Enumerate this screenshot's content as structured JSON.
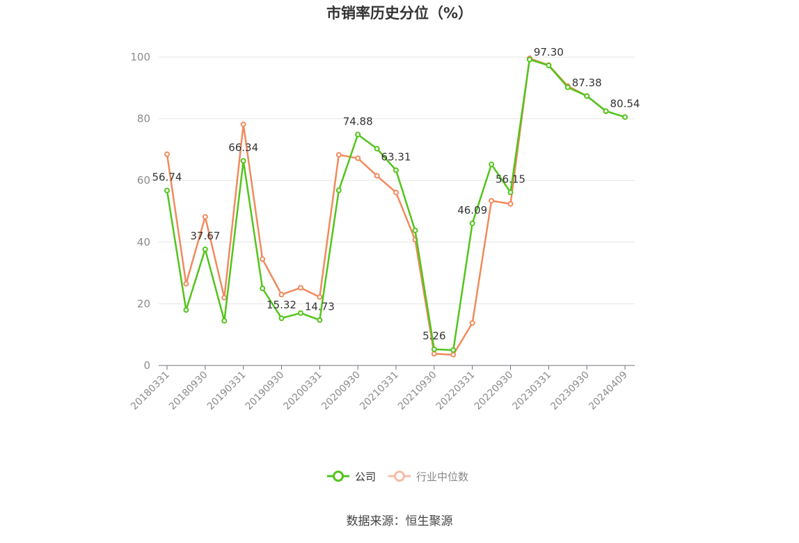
{
  "chart_data": {
    "type": "line",
    "title": "市销率历史分位（%）",
    "source": "数据来源：恒生聚源",
    "ylim": [
      0,
      100
    ],
    "yticks": [
      0,
      20,
      40,
      60,
      80,
      100
    ],
    "grid": true,
    "legend_position": "bottom-center",
    "x": [
      "20180331",
      "20180630",
      "20180930",
      "20181231",
      "20190331",
      "20190630",
      "20190930",
      "20191231",
      "20200331",
      "20200630",
      "20200930",
      "20201231",
      "20210331",
      "20210630",
      "20210930",
      "20211231",
      "20220331",
      "20220630",
      "20220930",
      "20221231",
      "20230331",
      "20230630",
      "20230930",
      "20231231",
      "20240409"
    ],
    "x_tick_labels": [
      "20180331",
      "20180930",
      "20190331",
      "20190930",
      "20200331",
      "20200930",
      "20210331",
      "20210930",
      "20220331",
      "20220930",
      "20230331",
      "20230930",
      "20240409"
    ],
    "series": [
      {
        "name": "公司",
        "color": "#52c41a",
        "values": [
          56.74,
          18.0,
          37.67,
          14.5,
          66.34,
          25.0,
          15.32,
          17.0,
          14.73,
          56.8,
          74.88,
          70.3,
          63.31,
          43.8,
          5.26,
          5.0,
          46.09,
          65.2,
          56.15,
          99.2,
          97.3,
          90.2,
          87.38,
          82.5,
          80.54
        ]
      },
      {
        "name": "行业中位数",
        "color": "#f08a5d",
        "values": [
          68.5,
          26.5,
          48.2,
          22.0,
          78.2,
          34.5,
          23.0,
          25.2,
          22.2,
          68.3,
          67.2,
          61.5,
          56.1,
          40.8,
          3.8,
          3.5,
          13.8,
          53.4,
          52.4,
          99.6,
          97.4,
          90.6,
          87.4,
          82.4,
          null
        ]
      }
    ],
    "data_labels": [
      {
        "series": 0,
        "index": 0,
        "text": "56.74"
      },
      {
        "series": 0,
        "index": 2,
        "text": "37.67"
      },
      {
        "series": 0,
        "index": 4,
        "text": "66.34"
      },
      {
        "series": 0,
        "index": 6,
        "text": "15.32"
      },
      {
        "series": 0,
        "index": 8,
        "text": "14.73"
      },
      {
        "series": 0,
        "index": 10,
        "text": "74.88"
      },
      {
        "series": 0,
        "index": 12,
        "text": "63.31"
      },
      {
        "series": 0,
        "index": 14,
        "text": "5.26"
      },
      {
        "series": 0,
        "index": 16,
        "text": "46.09"
      },
      {
        "series": 0,
        "index": 18,
        "text": "56.15"
      },
      {
        "series": 0,
        "index": 20,
        "text": "97.30"
      },
      {
        "series": 0,
        "index": 22,
        "text": "87.38"
      },
      {
        "series": 0,
        "index": 24,
        "text": "80.54"
      }
    ],
    "legend_colors": {
      "company_line": "#52c41a",
      "industry_line": "#f7bca5",
      "company_text": "#333333",
      "industry_text": "#888888"
    }
  }
}
